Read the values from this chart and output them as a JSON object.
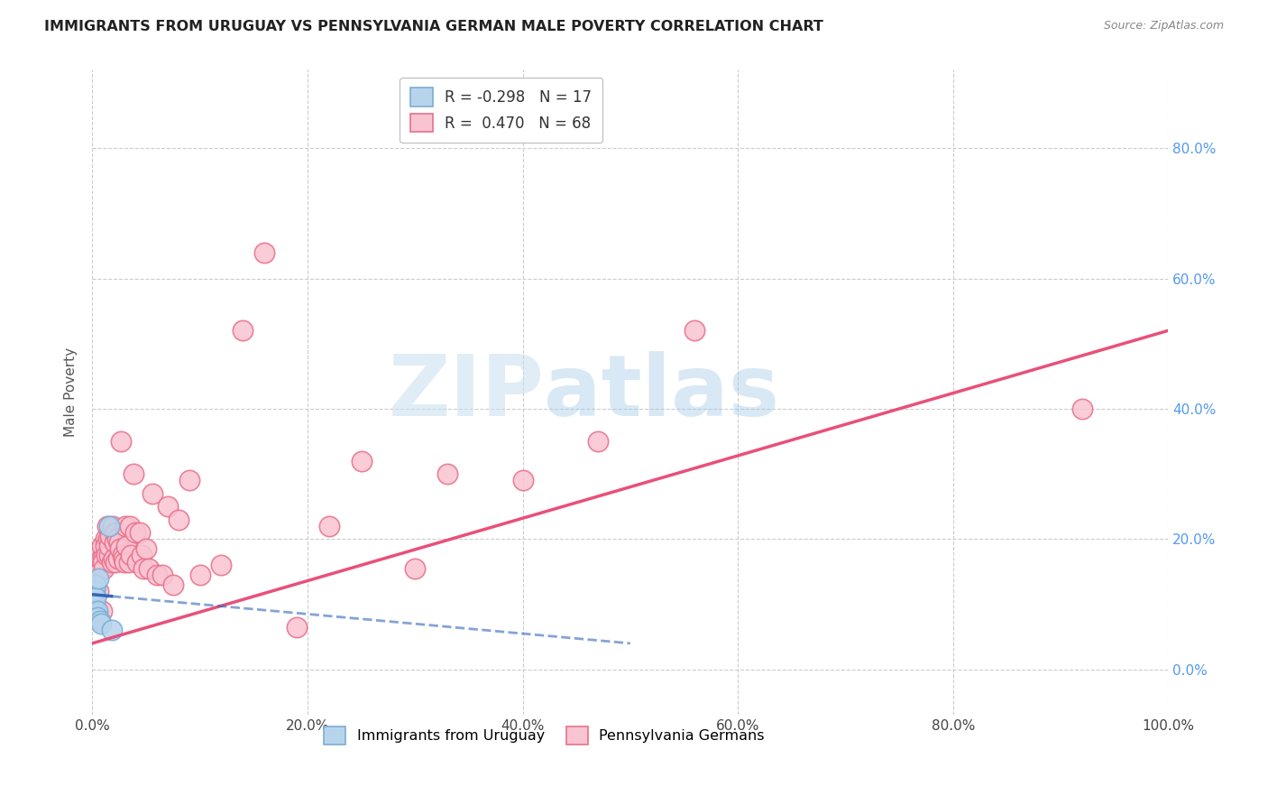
{
  "title": "IMMIGRANTS FROM URUGUAY VS PENNSYLVANIA GERMAN MALE POVERTY CORRELATION CHART",
  "source": "Source: ZipAtlas.com",
  "xlabel_ticks": [
    "0.0%",
    "20.0%",
    "40.0%",
    "60.0%",
    "80.0%",
    "100.0%"
  ],
  "ylabel_right_ticks": [
    "0.0%",
    "20.0%",
    "40.0%",
    "60.0%",
    "80.0%"
  ],
  "ylabel": "Male Poverty",
  "series1_label": "Immigrants from Uruguay",
  "series1_color": "#b8d4ed",
  "series1_edge_color": "#7aadd4",
  "series1_R": -0.298,
  "series1_N": 17,
  "series1_line_color": "#3366bb",
  "series2_label": "Pennsylvania Germans",
  "series2_color": "#f9c4d2",
  "series2_edge_color": "#e8708a",
  "series2_R": 0.47,
  "series2_N": 68,
  "series2_line_color": "#e8507a",
  "watermark_zip": "ZIP",
  "watermark_atlas": "atlas",
  "background_color": "#ffffff",
  "grid_color": "#cccccc",
  "xlim": [
    0.0,
    1.0
  ],
  "ylim": [
    -0.07,
    0.92
  ],
  "xticks": [
    0.0,
    0.2,
    0.4,
    0.6,
    0.8,
    1.0
  ],
  "yticks": [
    0.0,
    0.2,
    0.4,
    0.6,
    0.8
  ],
  "scatter1_x": [
    0.001,
    0.001,
    0.002,
    0.002,
    0.002,
    0.003,
    0.003,
    0.003,
    0.004,
    0.004,
    0.005,
    0.005,
    0.006,
    0.007,
    0.008,
    0.016,
    0.018
  ],
  "scatter1_y": [
    0.12,
    0.1,
    0.13,
    0.12,
    0.09,
    0.13,
    0.11,
    0.085,
    0.085,
    0.08,
    0.09,
    0.08,
    0.14,
    0.075,
    0.07,
    0.22,
    0.06
  ],
  "scatter2_x": [
    0.003,
    0.004,
    0.004,
    0.005,
    0.006,
    0.006,
    0.007,
    0.008,
    0.009,
    0.009,
    0.01,
    0.01,
    0.011,
    0.012,
    0.012,
    0.013,
    0.014,
    0.015,
    0.016,
    0.016,
    0.017,
    0.018,
    0.019,
    0.02,
    0.021,
    0.022,
    0.022,
    0.023,
    0.024,
    0.025,
    0.026,
    0.027,
    0.028,
    0.029,
    0.03,
    0.031,
    0.032,
    0.034,
    0.035,
    0.036,
    0.038,
    0.04,
    0.042,
    0.044,
    0.046,
    0.048,
    0.05,
    0.053,
    0.056,
    0.06,
    0.065,
    0.07,
    0.075,
    0.08,
    0.09,
    0.1,
    0.12,
    0.14,
    0.16,
    0.19,
    0.22,
    0.25,
    0.3,
    0.33,
    0.4,
    0.47,
    0.56,
    0.92
  ],
  "scatter2_y": [
    0.1,
    0.09,
    0.18,
    0.09,
    0.12,
    0.16,
    0.15,
    0.17,
    0.09,
    0.19,
    0.17,
    0.165,
    0.155,
    0.2,
    0.19,
    0.175,
    0.22,
    0.2,
    0.175,
    0.19,
    0.205,
    0.165,
    0.22,
    0.17,
    0.195,
    0.165,
    0.21,
    0.2,
    0.17,
    0.195,
    0.185,
    0.35,
    0.175,
    0.17,
    0.165,
    0.22,
    0.19,
    0.165,
    0.22,
    0.175,
    0.3,
    0.21,
    0.165,
    0.21,
    0.175,
    0.155,
    0.185,
    0.155,
    0.27,
    0.145,
    0.145,
    0.25,
    0.13,
    0.23,
    0.29,
    0.145,
    0.16,
    0.52,
    0.64,
    0.065,
    0.22,
    0.32,
    0.155,
    0.3,
    0.29,
    0.35,
    0.52,
    0.4
  ],
  "trend1_x0": 0.0,
  "trend1_x1": 0.5,
  "trend1_y0": 0.115,
  "trend1_y1": 0.04,
  "trend1_dash_x0": 0.018,
  "trend1_dash_x1": 0.5,
  "trend2_x0": 0.0,
  "trend2_x1": 1.0,
  "trend2_y0": 0.04,
  "trend2_y1": 0.52
}
